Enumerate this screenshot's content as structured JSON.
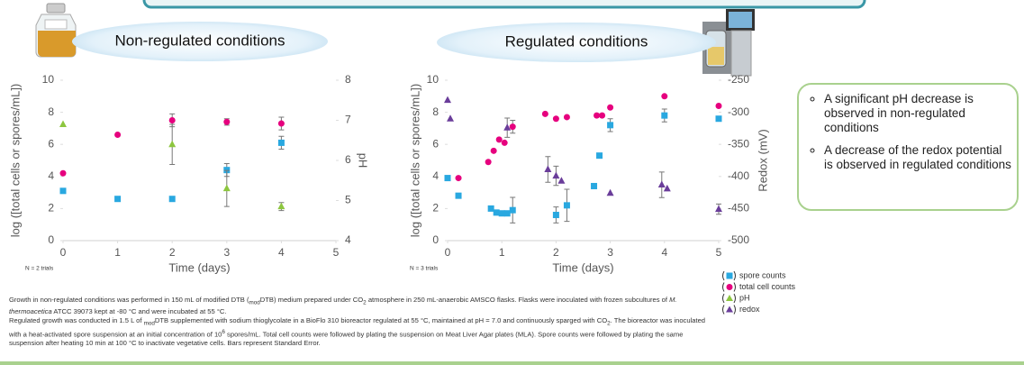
{
  "chart_data": [
    {
      "type": "scatter",
      "title": "Non-regulated conditions",
      "xlabel": "Time (days)",
      "ylabel": "log ([total cells or spores/mL])",
      "y2label": "pH",
      "note": "N = 2 trials",
      "xlim": [
        0,
        5
      ],
      "xticks": [
        0,
        1,
        2,
        3,
        4,
        5
      ],
      "ylim": [
        0,
        10
      ],
      "yticks": [
        0,
        2,
        4,
        6,
        8,
        10
      ],
      "y2lim": [
        4,
        8
      ],
      "y2ticks": [
        4,
        5,
        6,
        7,
        8
      ],
      "grid": false,
      "series": [
        {
          "name": "spore counts",
          "color": "#29a8e0",
          "marker": "square",
          "x": [
            0,
            1,
            2,
            3,
            4
          ],
          "values": [
            3.1,
            2.6,
            2.6,
            4.4,
            6.1
          ],
          "errors": [
            null,
            null,
            null,
            0.4,
            0.4
          ]
        },
        {
          "name": "total cell counts",
          "color": "#e6007e",
          "marker": "circle",
          "x": [
            0,
            1,
            2,
            3,
            4
          ],
          "values": [
            4.2,
            6.6,
            7.5,
            7.4,
            7.3
          ],
          "errors": [
            null,
            null,
            0.4,
            0.2,
            0.4
          ]
        },
        {
          "name": "pH",
          "color": "#8dc63f",
          "marker": "triangle",
          "axis": "y2",
          "x": [
            0,
            2,
            3,
            4
          ],
          "values": [
            6.9,
            6.4,
            5.3,
            4.85
          ],
          "errors": [
            null,
            0.5,
            0.45,
            0.1
          ]
        }
      ]
    },
    {
      "type": "scatter",
      "title": "Regulated conditions",
      "xlabel": "Time (days)",
      "ylabel": "log ([total cells or spores/mL])",
      "y2label": "Redox (mV)",
      "note": "N = 3 trials",
      "xlim": [
        0,
        5
      ],
      "xticks": [
        0,
        1,
        2,
        3,
        4,
        5
      ],
      "ylim": [
        0,
        10
      ],
      "yticks": [
        0,
        2,
        4,
        6,
        8,
        10
      ],
      "y2lim": [
        -500,
        -250
      ],
      "y2ticks": [
        -500,
        -450,
        -400,
        -350,
        -300,
        -250
      ],
      "grid": false,
      "series": [
        {
          "name": "spore counts",
          "color": "#29a8e0",
          "marker": "square",
          "x": [
            0,
            0.2,
            0.8,
            0.9,
            1.0,
            1.1,
            1.2,
            2.0,
            2.2,
            2.7,
            2.8,
            3.0,
            4.0,
            5.0
          ],
          "values": [
            3.9,
            2.8,
            2.0,
            1.75,
            1.7,
            1.7,
            1.9,
            1.6,
            2.2,
            3.4,
            5.3,
            7.2,
            7.8,
            7.6
          ],
          "errors": [
            null,
            null,
            null,
            null,
            null,
            null,
            0.8,
            0.5,
            1.0,
            null,
            null,
            0.4,
            0.4,
            null
          ]
        },
        {
          "name": "total cell counts",
          "color": "#e6007e",
          "marker": "circle",
          "x": [
            0.2,
            0.75,
            0.85,
            0.95,
            1.05,
            1.2,
            1.8,
            2.0,
            2.2,
            2.75,
            2.85,
            3.0,
            4.0,
            5.0
          ],
          "values": [
            3.9,
            4.9,
            5.6,
            6.3,
            6.1,
            7.1,
            7.9,
            7.6,
            7.7,
            7.8,
            7.8,
            8.3,
            9.0,
            8.4
          ],
          "errors": [
            null,
            null,
            null,
            null,
            null,
            0.4,
            null,
            null,
            null,
            null,
            null,
            null,
            null,
            null
          ]
        },
        {
          "name": "redox",
          "color": "#6a3d9a",
          "marker": "triangle",
          "axis": "y2",
          "x": [
            0,
            0.05,
            1.1,
            1.85,
            2.0,
            2.1,
            3.0,
            3.95,
            4.05,
            5.0
          ],
          "values": [
            -281,
            -310,
            -324,
            -389,
            -399,
            -407,
            -426,
            -413,
            -419,
            -451
          ],
          "errors": [
            null,
            null,
            15,
            20,
            15,
            null,
            null,
            20,
            null,
            8
          ]
        }
      ]
    }
  ],
  "notes": [
    "A significant pH decrease is observed in non-regulated conditions",
    "A decrease of the redox potential is observed in regulated conditions"
  ],
  "caption": [
    [
      "Growth in non-regulated conditions was performed in 150 mL of modified DTB (",
      {
        "sub": "mod"
      },
      "DTB) medium prepared under CO",
      {
        "sub": "2"
      },
      " atmosphere in 250 mL-anaerobic AMSCO flasks. Flasks were inoculated with frozen subcultures of ",
      {
        "i": "M. thermoacetica"
      },
      " ATCC 39073 kept at -80 °C and were incubated at 55 °C."
    ],
    [
      "Regulated growth was conducted in 1.5 L of ",
      {
        "sub": "mod"
      },
      "DTB supplemented with sodium thioglycolate in a BioFlo 310 bioreactor regulated at 55 °C, maintained at pH = 7.0 and continuously sparged with CO",
      {
        "sub": "2"
      },
      ". The bioreactor was inoculated with a heat-activated spore suspension at an initial concentration of 10",
      {
        "sup": "6"
      },
      " spores/mL. Total cell counts were followed by plating the suspension on Meat Liver Agar plates (MLA). Spore counts were followed by plating the same suspension after heating 10 min at 100 °C to inactivate vegetative cells. Bars represent Standard Error."
    ]
  ]
}
